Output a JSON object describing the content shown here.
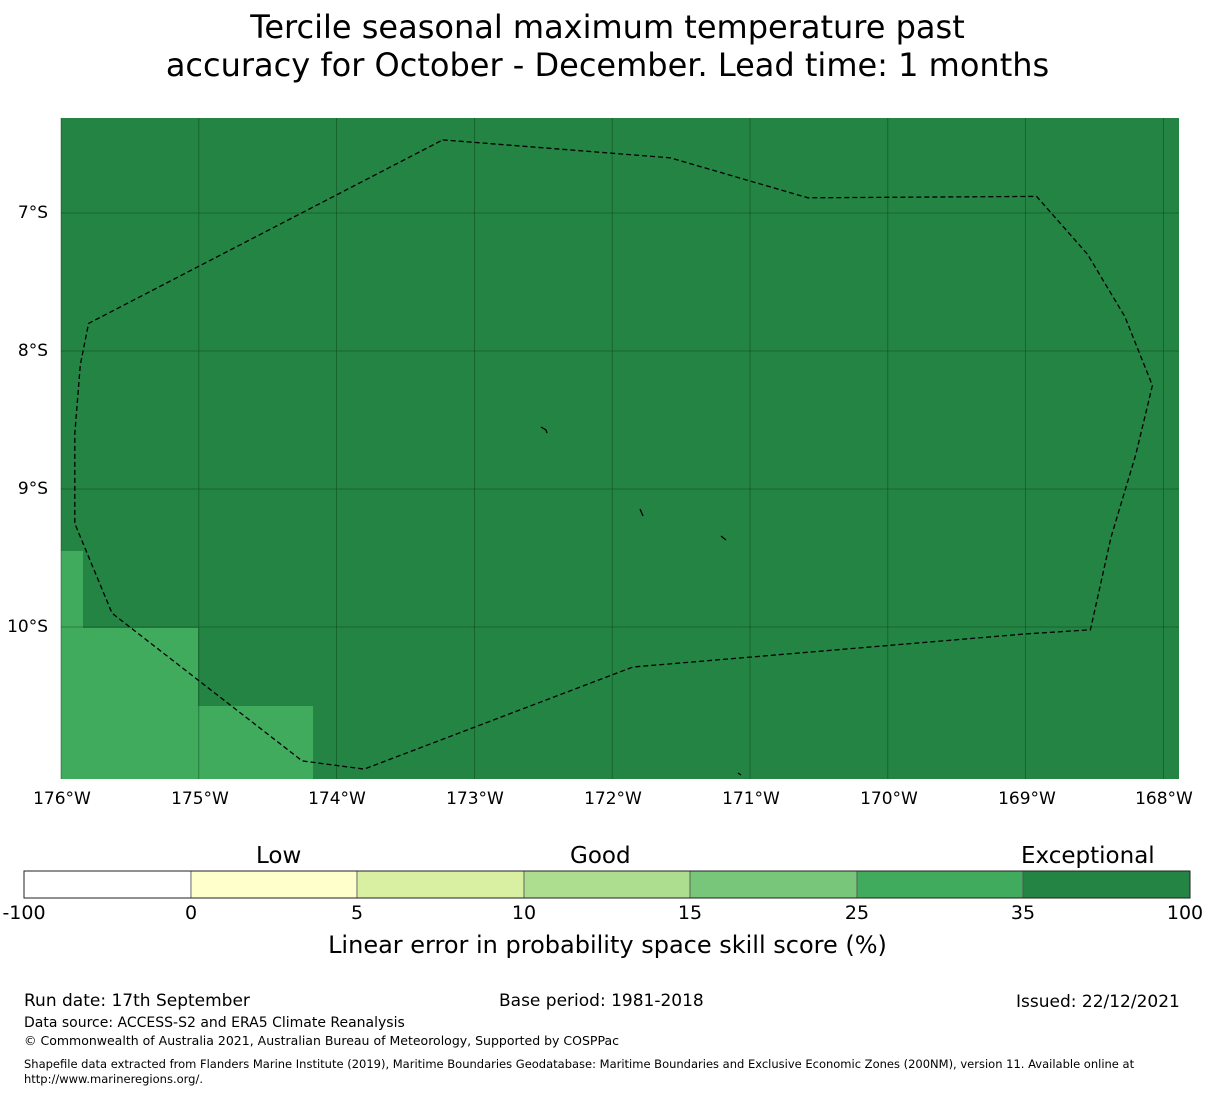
{
  "title": {
    "line1": "Tercile seasonal maximum temperature past",
    "line2": "accuracy for October - December. Lead time: 1 months"
  },
  "map": {
    "lat_labels": [
      "7°S",
      "8°S",
      "9°S",
      "10°S"
    ],
    "lon_labels": [
      "176°W",
      "175°W",
      "174°W",
      "173°W",
      "172°W",
      "171°W",
      "170°W",
      "169°W",
      "168°W"
    ],
    "extent": {
      "lon_min": -176.0,
      "lon_max": -167.9,
      "lat_top": -6.3,
      "lat_bottom": -11.1
    },
    "base_category": "35-100",
    "low_patches_category": "25-35",
    "eez_boundary_lonlat": [
      [
        -173.23,
        -6.47
      ],
      [
        -171.58,
        -6.6
      ],
      [
        -170.58,
        -6.89
      ],
      [
        -168.92,
        -6.88
      ],
      [
        -168.55,
        -7.3
      ],
      [
        -168.28,
        -7.75
      ],
      [
        -168.08,
        -8.25
      ],
      [
        -168.2,
        -8.75
      ],
      [
        -168.38,
        -9.35
      ],
      [
        -168.53,
        -10.02
      ],
      [
        -169.0,
        -10.05
      ],
      [
        -171.85,
        -10.29
      ],
      [
        -173.8,
        -11.03
      ],
      [
        -174.25,
        -10.97
      ],
      [
        -175.63,
        -9.9
      ],
      [
        -175.9,
        -9.25
      ],
      [
        -175.9,
        -8.6
      ],
      [
        -175.86,
        -8.1
      ],
      [
        -175.8,
        -7.8
      ],
      [
        -173.23,
        -6.47
      ]
    ]
  },
  "colorbar": {
    "category_labels": [
      "Low",
      "Good",
      "Exceptional"
    ],
    "ticks": [
      "-100",
      "0",
      "5",
      "10",
      "15",
      "25",
      "35",
      "100"
    ],
    "colors": [
      "#ffffff",
      "#ffffcc",
      "#d9f0a3",
      "#addd8e",
      "#78c679",
      "#41ab5d",
      "#238443"
    ],
    "title": "Linear error in probability space skill score (%)"
  },
  "footer": {
    "run_date": "Run date: 17th September",
    "base_period": "Base period: 1981-2018",
    "issued": "Issued: 22/12/2021",
    "data_source": "Data source: ACCESS-S2 and ERA5 Climate Reanalysis",
    "copyright": "© Commonwealth of Australia 2021, Australian Bureau of Meteorology, Supported by COSPPac",
    "shapefile_line1": "Shapefile data extracted from Flanders Marine Institute (2019), Maritime Boundaries Geodatabase: Maritime Boundaries and Exclusive Economic Zones (200NM), version 11. Available online at",
    "shapefile_line2": "http://www.marineregions.org/."
  }
}
